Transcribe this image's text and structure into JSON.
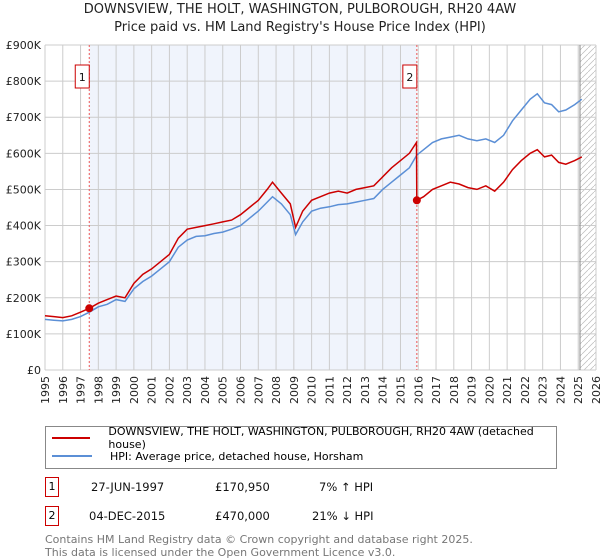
{
  "title": "DOWNSVIEW, THE HOLT, WASHINGTON, PULBOROUGH, RH20 4AW",
  "subtitle": "Price paid vs. HM Land Registry's House Price Index (HPI)",
  "chart_data": {
    "type": "line",
    "xlim": [
      1995,
      2026
    ],
    "ylim": [
      0,
      900000
    ],
    "yticks": [
      0,
      100000,
      200000,
      300000,
      400000,
      500000,
      600000,
      700000,
      800000,
      900000
    ],
    "ytick_labels": [
      "£0",
      "£100K",
      "£200K",
      "£300K",
      "£400K",
      "£500K",
      "£600K",
      "£700K",
      "£800K",
      "£900K"
    ],
    "xticks": [
      "1995",
      "1996",
      "1997",
      "1998",
      "1999",
      "2000",
      "2001",
      "2002",
      "2003",
      "2004",
      "2005",
      "2006",
      "2007",
      "2008",
      "2009",
      "2010",
      "2011",
      "2012",
      "2013",
      "2014",
      "2015",
      "2016",
      "2017",
      "2018",
      "2019",
      "2020",
      "2021",
      "2022",
      "2023",
      "2024",
      "2025",
      "2026"
    ],
    "shaded_range": [
      1997.49,
      2015.92
    ],
    "forecast_from": 2025.1,
    "series": [
      {
        "name": "DOWNSVIEW, THE HOLT, WASHINGTON, PULBOROUGH, RH20 4AW (detached house)",
        "color": "#cc0000",
        "x": [
          1995,
          1995.5,
          1996,
          1996.5,
          1997,
          1997.49,
          1998,
          1998.5,
          1999,
          1999.5,
          2000,
          2000.5,
          2001,
          2001.5,
          2002,
          2002.5,
          2003,
          2003.5,
          2004,
          2004.5,
          2005,
          2005.5,
          2006,
          2006.5,
          2007,
          2007.5,
          2007.8,
          2008.3,
          2008.8,
          2009.1,
          2009.5,
          2010,
          2010.5,
          2011,
          2011.5,
          2012,
          2012.5,
          2013,
          2013.5,
          2014,
          2014.5,
          2015,
          2015.5,
          2015.9,
          2015.92,
          2016.3,
          2016.8,
          2017.3,
          2017.8,
          2018.3,
          2018.8,
          2019.3,
          2019.8,
          2020.3,
          2020.8,
          2021.3,
          2021.8,
          2022.3,
          2022.7,
          2023.1,
          2023.5,
          2023.9,
          2024.3,
          2024.8,
          2025.2
        ],
        "y": [
          150,
          148,
          145,
          150,
          160,
          170.95,
          185,
          195,
          205,
          200,
          240,
          265,
          280,
          300,
          320,
          365,
          390,
          395,
          400,
          405,
          410,
          415,
          430,
          450,
          470,
          500,
          520,
          490,
          460,
          395,
          440,
          470,
          480,
          490,
          495,
          490,
          500,
          505,
          510,
          535,
          560,
          580,
          600,
          630,
          470,
          480,
          500,
          510,
          520,
          515,
          505,
          500,
          510,
          495,
          520,
          555,
          580,
          600,
          610,
          590,
          595,
          575,
          570,
          580,
          590
        ]
      },
      {
        "name": "HPI: Average price, detached house, Horsham",
        "color": "#5b8fd6",
        "x": [
          1995,
          1995.5,
          1996,
          1996.5,
          1997,
          1997.49,
          1998,
          1998.5,
          1999,
          1999.5,
          2000,
          2000.5,
          2001,
          2001.5,
          2002,
          2002.5,
          2003,
          2003.5,
          2004,
          2004.5,
          2005,
          2005.5,
          2006,
          2006.5,
          2007,
          2007.5,
          2007.8,
          2008.3,
          2008.8,
          2009.1,
          2009.5,
          2010,
          2010.5,
          2011,
          2011.5,
          2012,
          2012.5,
          2013,
          2013.5,
          2014,
          2014.5,
          2015,
          2015.5,
          2015.92,
          2016.3,
          2016.8,
          2017.3,
          2017.8,
          2018.3,
          2018.8,
          2019.3,
          2019.8,
          2020.3,
          2020.8,
          2021.3,
          2021.8,
          2022.3,
          2022.7,
          2023.1,
          2023.5,
          2023.9,
          2024.3,
          2024.8,
          2025.2
        ],
        "y": [
          140,
          138,
          136,
          140,
          148,
          160,
          175,
          182,
          195,
          190,
          225,
          245,
          260,
          280,
          300,
          340,
          360,
          370,
          372,
          378,
          382,
          390,
          400,
          420,
          440,
          465,
          480,
          460,
          430,
          375,
          410,
          440,
          448,
          452,
          458,
          460,
          465,
          470,
          475,
          500,
          520,
          540,
          560,
          595,
          610,
          630,
          640,
          645,
          650,
          640,
          635,
          640,
          630,
          650,
          690,
          720,
          750,
          765,
          740,
          735,
          715,
          720,
          735,
          750
        ]
      }
    ],
    "annotations": [
      {
        "label": "1",
        "x": 1997.49,
        "y": 170950
      },
      {
        "label": "2",
        "x": 2015.92,
        "y": 470000
      }
    ]
  },
  "legend": [
    "DOWNSVIEW, THE HOLT, WASHINGTON, PULBOROUGH, RH20 4AW (detached house)",
    "HPI: Average price, detached house, Horsham"
  ],
  "transactions": [
    {
      "num": "1",
      "date": "27-JUN-1997",
      "price": "£170,950",
      "delta": "7% ↑ HPI"
    },
    {
      "num": "2",
      "date": "04-DEC-2015",
      "price": "£470,000",
      "delta": "21% ↓ HPI"
    }
  ],
  "footer": [
    "Contains HM Land Registry data © Crown copyright and database right 2025.",
    "This data is licensed under the Open Government Licence v3.0."
  ]
}
